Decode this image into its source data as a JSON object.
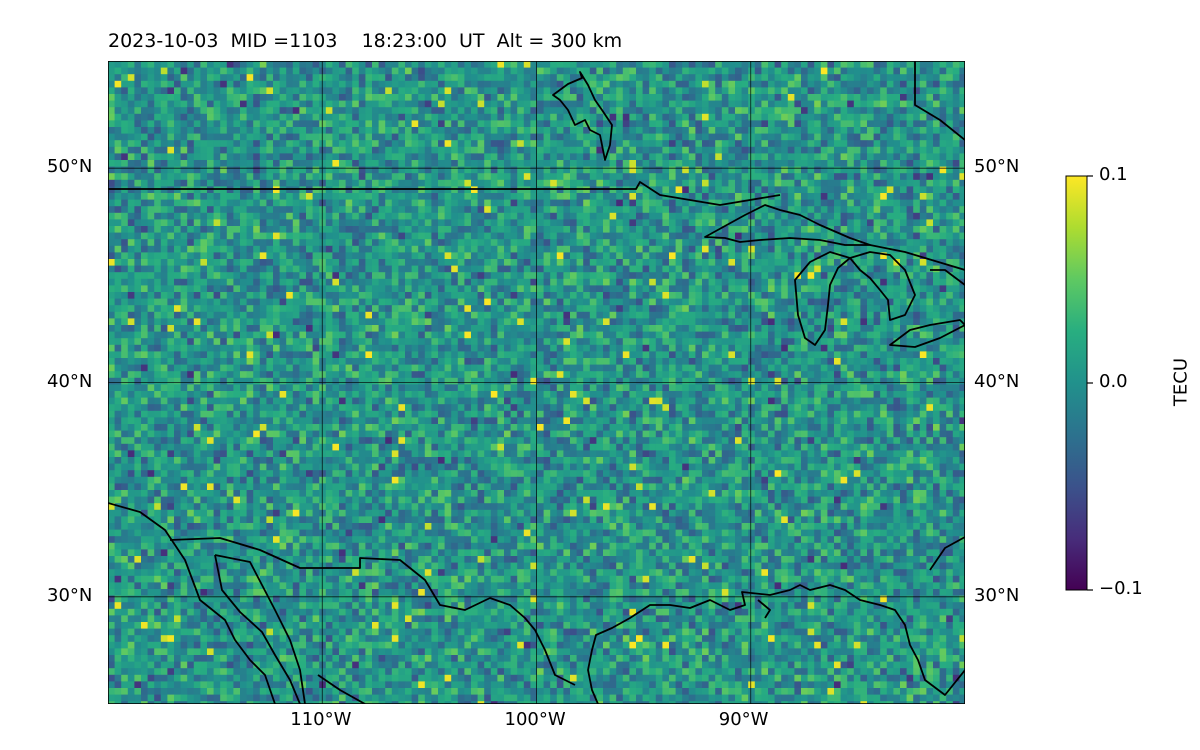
{
  "title": "2023-10-03  MID =1103    18:23:00  UT  Alt = 300 km",
  "map": {
    "lon_range": [
      -120,
      -80
    ],
    "lat_range": [
      25,
      55
    ],
    "lon_ticks": [
      {
        "value": -110,
        "label": "110°W"
      },
      {
        "value": -100,
        "label": "100°W"
      },
      {
        "value": -90,
        "label": "90°W"
      }
    ],
    "lat_ticks": [
      {
        "value": 50,
        "label": "50°N"
      },
      {
        "value": 40,
        "label": "40°N"
      },
      {
        "value": 30,
        "label": "30°N"
      }
    ],
    "gridlines": true,
    "field": "TEC perturbation, viridis colormap, mostly near 0.0 with small-scale noise"
  },
  "colorbar": {
    "label": "TECU",
    "min": -0.1,
    "max": 0.1,
    "ticks": [
      {
        "value": 0.1,
        "label": "0.1"
      },
      {
        "value": 0.0,
        "label": "0.0"
      },
      {
        "value": -0.1,
        "label": "−0.1"
      }
    ],
    "colormap": "viridis"
  },
  "colors": {
    "frame": "#000000",
    "coastline": "#000000",
    "grid": "#000000"
  }
}
